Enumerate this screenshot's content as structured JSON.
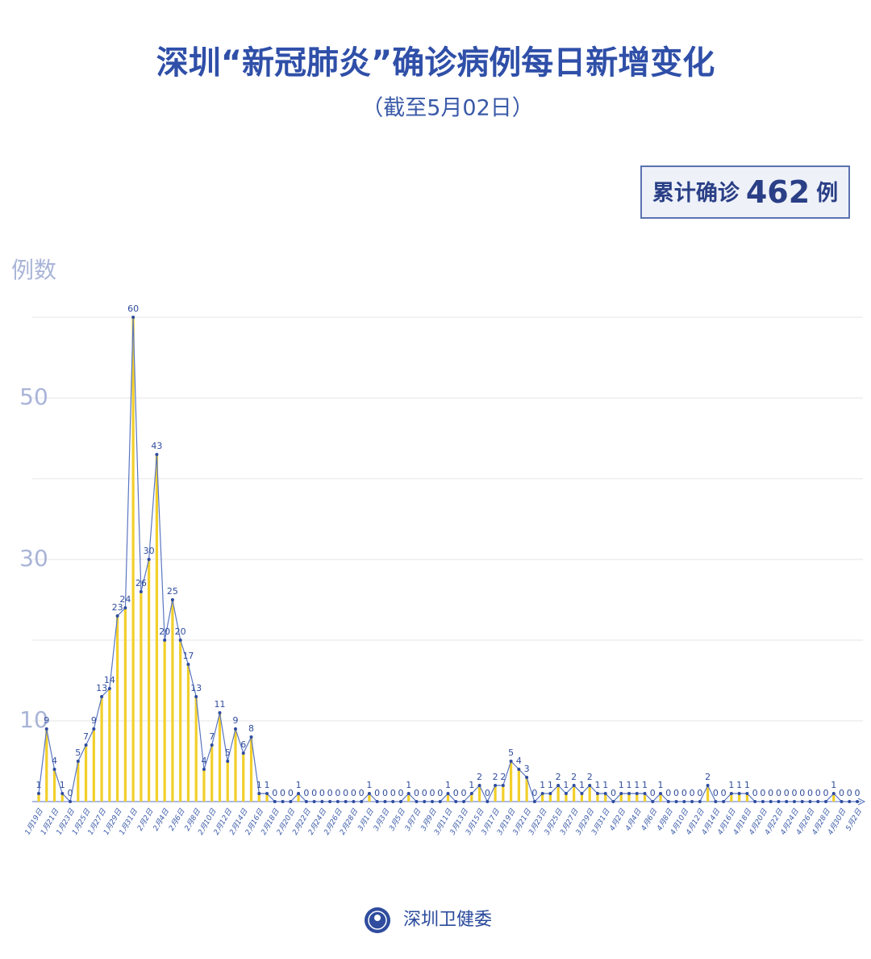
{
  "chart_data": {
    "type": "bar",
    "title": "深圳“新冠肺炎”确诊病例每日新增变化",
    "subtitle": "（截至5月02日）",
    "total_prefix": "累计确诊",
    "total": 462,
    "total_suffix": "例",
    "y_label": "例数",
    "source": "深圳卫健委",
    "categories": [
      "1月19日",
      null,
      "1月21日",
      null,
      "1月23日",
      null,
      "1月25日",
      null,
      "1月27日",
      null,
      "1月29日",
      null,
      "1月31日",
      null,
      "2月2日",
      null,
      "2月4日",
      null,
      "2月6日",
      null,
      "2月8日",
      null,
      "2月10日",
      null,
      "2月12日",
      null,
      "2月14日",
      null,
      "2月16日",
      null,
      "2月18日",
      null,
      "2月20日",
      null,
      "2月22日",
      null,
      "2月24日",
      null,
      "2月26日",
      null,
      "2月28日",
      null,
      "3月1日",
      null,
      "3月3日",
      null,
      "3月5日",
      null,
      "3月7日",
      null,
      "3月9日",
      null,
      "3月11日",
      null,
      "3月13日",
      null,
      "3月15日",
      null,
      "3月17日",
      null,
      "3月19日",
      null,
      "3月21日",
      null,
      "3月23日",
      null,
      "3月25日",
      null,
      "3月27日",
      null,
      "3月29日",
      null,
      "3月31日",
      null,
      "4月2日",
      null,
      "4月4日",
      null,
      "4月6日",
      null,
      "4月8日",
      null,
      "4月10日",
      null,
      "4月12日",
      null,
      "4月14日",
      null,
      "4月16日",
      null,
      "4月18日",
      null,
      "4月20日",
      null,
      "4月22日",
      null,
      "4月24日",
      null,
      "4月26日",
      null,
      "4月28日",
      null,
      "4月30日",
      null,
      "5月2日"
    ],
    "values": [
      1,
      9,
      4,
      1,
      0,
      5,
      7,
      9,
      13,
      14,
      23,
      24,
      60,
      26,
      30,
      43,
      20,
      25,
      20,
      17,
      13,
      4,
      7,
      11,
      5,
      9,
      6,
      8,
      1,
      1,
      0,
      0,
      0,
      1,
      0,
      0,
      0,
      0,
      0,
      0,
      0,
      0,
      1,
      0,
      0,
      0,
      0,
      1,
      0,
      0,
      0,
      0,
      1,
      0,
      0,
      1,
      2,
      0,
      2,
      2,
      5,
      4,
      3,
      0,
      1,
      1,
      2,
      1,
      2,
      1,
      2,
      1,
      1,
      0,
      1,
      1,
      1,
      1,
      0,
      1,
      0,
      0,
      0,
      0,
      0,
      2,
      0,
      0,
      1,
      1,
      1,
      0,
      0,
      0,
      0,
      0,
      0,
      0,
      0,
      0,
      0,
      1,
      0,
      0,
      0
    ],
    "bar_color": "#f2cf2a",
    "line_color": "#5a76c0",
    "point_color": "#2f4c9e",
    "ylim": [
      0,
      60
    ],
    "yticks": [
      10,
      30,
      50
    ],
    "grid_lines": [
      10,
      20,
      30,
      40,
      50,
      60
    ],
    "grid": true
  }
}
